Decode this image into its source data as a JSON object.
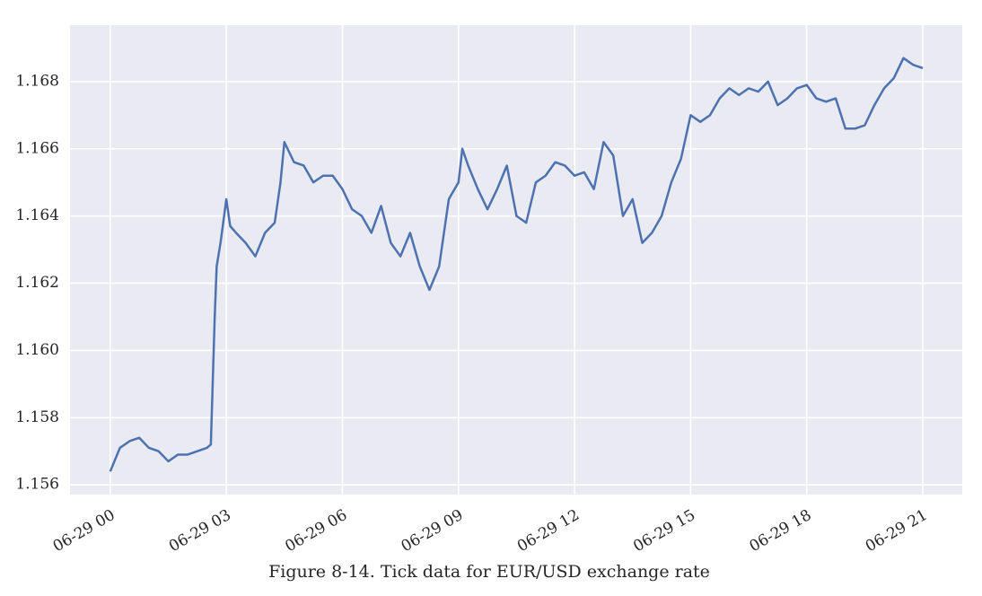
{
  "chart_data": {
    "type": "line",
    "title": "Figure 8-14. Tick data for EUR/USD exchange rate",
    "x": [
      0,
      0.25,
      0.5,
      0.75,
      1,
      1.25,
      1.5,
      1.75,
      2,
      2.25,
      2.5,
      2.6,
      2.7,
      2.75,
      2.85,
      3,
      3.1,
      3.25,
      3.5,
      3.75,
      4,
      4.25,
      4.4,
      4.5,
      4.75,
      5,
      5.25,
      5.5,
      5.75,
      6,
      6.25,
      6.5,
      6.75,
      7,
      7.25,
      7.5,
      7.75,
      8,
      8.25,
      8.5,
      8.75,
      9,
      9.1,
      9.25,
      9.5,
      9.75,
      10,
      10.25,
      10.5,
      10.75,
      11,
      11.25,
      11.5,
      11.75,
      12,
      12.25,
      12.5,
      12.75,
      13,
      13.25,
      13.5,
      13.75,
      14,
      14.25,
      14.5,
      14.75,
      15,
      15.25,
      15.5,
      15.75,
      16,
      16.25,
      16.5,
      16.75,
      17,
      17.25,
      17.5,
      17.75,
      18,
      18.25,
      18.5,
      18.75,
      19,
      19.25,
      19.5,
      19.75,
      20,
      20.25,
      20.5,
      20.75,
      21
    ],
    "values": [
      1.1564,
      1.1571,
      1.1573,
      1.1574,
      1.1571,
      1.157,
      1.1567,
      1.1569,
      1.1569,
      1.157,
      1.1571,
      1.1572,
      1.161,
      1.1625,
      1.1632,
      1.1645,
      1.1637,
      1.1635,
      1.1632,
      1.1628,
      1.1635,
      1.1638,
      1.165,
      1.1662,
      1.1656,
      1.1655,
      1.165,
      1.1652,
      1.1652,
      1.1648,
      1.1642,
      1.164,
      1.1635,
      1.1643,
      1.1632,
      1.1628,
      1.1635,
      1.1625,
      1.1618,
      1.1625,
      1.1645,
      1.165,
      1.166,
      1.1655,
      1.1648,
      1.1642,
      1.1648,
      1.1655,
      1.164,
      1.1638,
      1.165,
      1.1652,
      1.1656,
      1.1655,
      1.1652,
      1.1653,
      1.1648,
      1.1662,
      1.1658,
      1.164,
      1.1645,
      1.1632,
      1.1635,
      1.164,
      1.165,
      1.1657,
      1.167,
      1.1668,
      1.167,
      1.1675,
      1.1678,
      1.1676,
      1.1678,
      1.1677,
      1.168,
      1.1673,
      1.1675,
      1.1678,
      1.1679,
      1.1675,
      1.1674,
      1.1675,
      1.1666,
      1.1666,
      1.1667,
      1.1673,
      1.1678,
      1.1681,
      1.1687,
      1.1685,
      1.1684
    ],
    "color": "#4c72b0",
    "xlim": [
      -1.04,
      22.02
    ],
    "xticks": [
      {
        "value": 0,
        "label": "06-29 00"
      },
      {
        "value": 3,
        "label": "06-29 03"
      },
      {
        "value": 6,
        "label": "06-29 06"
      },
      {
        "value": 9,
        "label": "06-29 09"
      },
      {
        "value": 12,
        "label": "06-29 12"
      },
      {
        "value": 15,
        "label": "06-29 15"
      },
      {
        "value": 18,
        "label": "06-29 18"
      },
      {
        "value": 21,
        "label": "06-29 21"
      }
    ],
    "ylim": [
      1.15571,
      1.16968
    ],
    "yticks": [
      1.156,
      1.158,
      {
        "value": 1.16,
        "label": "1.160"
      },
      1.162,
      1.164,
      1.166,
      1.168
    ],
    "grid": true
  }
}
